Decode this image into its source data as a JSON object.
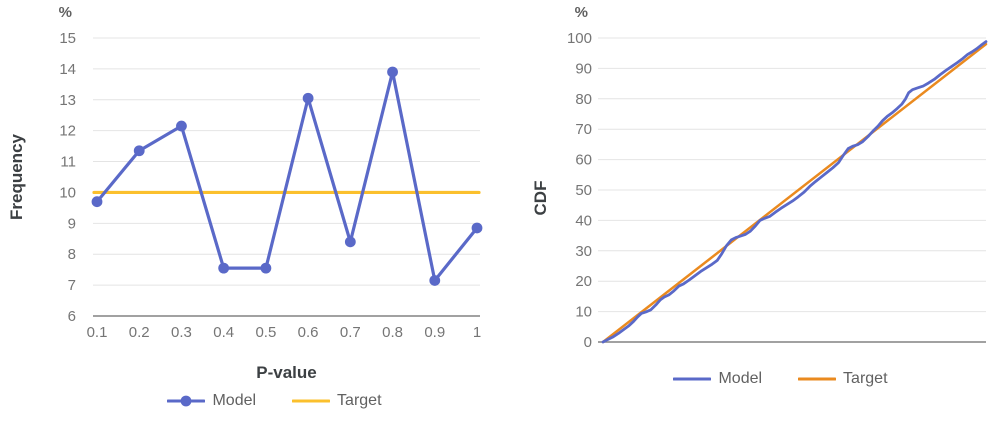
{
  "figure": {
    "background": "#ffffff",
    "grid_color": "#e4e4e4",
    "axis_line_color": "#828282",
    "tick_label_color": "#757575",
    "axis_title_color": "#3c4043",
    "legend_text_color": "#616161"
  },
  "chart_data": [
    {
      "type": "line",
      "title": "",
      "unit": "%",
      "xlabel": "P-value",
      "ylabel": "Frequency",
      "categories": [
        0.1,
        0.2,
        0.3,
        0.4,
        0.5,
        0.6,
        0.7,
        0.8,
        0.9,
        1
      ],
      "ylim": [
        6,
        15
      ],
      "yticks": [
        6,
        7,
        8,
        9,
        10,
        11,
        12,
        13,
        14,
        15
      ],
      "grid": true,
      "legend_position": "bottom",
      "series": [
        {
          "name": "Model",
          "color": "#5a69c8",
          "marker": "circle",
          "values": [
            9.7,
            11.35,
            12.15,
            7.55,
            7.55,
            13.05,
            8.4,
            13.9,
            7.15,
            8.85
          ]
        },
        {
          "name": "Target",
          "color": "#fbc02d",
          "marker": "none",
          "values": [
            10,
            10,
            10,
            10,
            10,
            10,
            10,
            10,
            10,
            10
          ]
        }
      ]
    },
    {
      "type": "line",
      "title": "",
      "unit": "%",
      "xlabel": "",
      "ylabel": "CDF",
      "xlim": [
        0,
        1
      ],
      "ylim": [
        0,
        100
      ],
      "yticks": [
        0,
        10,
        20,
        30,
        40,
        50,
        60,
        70,
        80,
        90,
        100
      ],
      "grid": true,
      "legend_position": "bottom",
      "series": [
        {
          "name": "Model",
          "color": "#5a69c8",
          "marker": "none",
          "points": [
            [
              0.0,
              0.0
            ],
            [
              0.012,
              0.8
            ],
            [
              0.025,
              1.6
            ],
            [
              0.04,
              2.8
            ],
            [
              0.055,
              4.2
            ],
            [
              0.068,
              5.4
            ],
            [
              0.08,
              6.8
            ],
            [
              0.09,
              8.2
            ],
            [
              0.1,
              9.4
            ],
            [
              0.112,
              9.9
            ],
            [
              0.125,
              10.6
            ],
            [
              0.138,
              12.2
            ],
            [
              0.15,
              13.9
            ],
            [
              0.16,
              14.8
            ],
            [
              0.172,
              15.5
            ],
            [
              0.185,
              16.8
            ],
            [
              0.198,
              18.4
            ],
            [
              0.21,
              19.1
            ],
            [
              0.225,
              20.4
            ],
            [
              0.24,
              21.8
            ],
            [
              0.255,
              23.2
            ],
            [
              0.27,
              24.4
            ],
            [
              0.285,
              25.6
            ],
            [
              0.298,
              26.8
            ],
            [
              0.31,
              29.0
            ],
            [
              0.322,
              31.6
            ],
            [
              0.335,
              33.6
            ],
            [
              0.348,
              34.4
            ],
            [
              0.36,
              34.9
            ],
            [
              0.372,
              35.4
            ],
            [
              0.385,
              36.5
            ],
            [
              0.398,
              38.2
            ],
            [
              0.41,
              40.0
            ],
            [
              0.422,
              40.7
            ],
            [
              0.435,
              41.3
            ],
            [
              0.45,
              42.7
            ],
            [
              0.465,
              44.0
            ],
            [
              0.48,
              45.2
            ],
            [
              0.495,
              46.4
            ],
            [
              0.51,
              47.8
            ],
            [
              0.525,
              49.3
            ],
            [
              0.54,
              51.2
            ],
            [
              0.555,
              52.8
            ],
            [
              0.57,
              54.3
            ],
            [
              0.585,
              55.8
            ],
            [
              0.6,
              57.3
            ],
            [
              0.615,
              59.0
            ],
            [
              0.628,
              61.5
            ],
            [
              0.64,
              63.6
            ],
            [
              0.652,
              64.4
            ],
            [
              0.665,
              64.9
            ],
            [
              0.678,
              65.9
            ],
            [
              0.692,
              67.6
            ],
            [
              0.705,
              69.4
            ],
            [
              0.718,
              71.0
            ],
            [
              0.73,
              72.8
            ],
            [
              0.742,
              74.2
            ],
            [
              0.755,
              75.4
            ],
            [
              0.768,
              76.8
            ],
            [
              0.78,
              78.2
            ],
            [
              0.79,
              80.0
            ],
            [
              0.798,
              82.0
            ],
            [
              0.808,
              83.0
            ],
            [
              0.822,
              83.6
            ],
            [
              0.836,
              84.2
            ],
            [
              0.85,
              85.2
            ],
            [
              0.865,
              86.4
            ],
            [
              0.88,
              87.9
            ],
            [
              0.895,
              89.3
            ],
            [
              0.91,
              90.6
            ],
            [
              0.925,
              91.9
            ],
            [
              0.94,
              93.3
            ],
            [
              0.952,
              94.6
            ],
            [
              0.963,
              95.4
            ],
            [
              0.975,
              96.4
            ],
            [
              0.987,
              97.6
            ],
            [
              1.0,
              98.8
            ]
          ]
        },
        {
          "name": "Target",
          "color": "#ea8a1f",
          "marker": "none",
          "points": [
            [
              0.0,
              0.0
            ],
            [
              1.0,
              98.0
            ]
          ]
        }
      ]
    }
  ]
}
